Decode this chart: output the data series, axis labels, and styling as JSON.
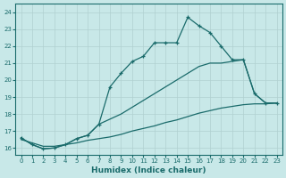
{
  "xlabel": "Humidex (Indice chaleur)",
  "xlim": [
    -0.5,
    23.5
  ],
  "ylim": [
    15.6,
    24.5
  ],
  "yticks": [
    16,
    17,
    18,
    19,
    20,
    21,
    22,
    23,
    24
  ],
  "xticks": [
    0,
    1,
    2,
    3,
    4,
    5,
    6,
    7,
    8,
    9,
    10,
    11,
    12,
    13,
    14,
    15,
    16,
    17,
    18,
    19,
    20,
    21,
    22,
    23
  ],
  "bg_color": "#c8e8e8",
  "line_color": "#1a6b6b",
  "line_a_x": [
    0,
    1,
    2,
    3,
    4,
    5,
    6,
    7,
    8,
    9,
    10,
    11,
    12,
    13,
    14,
    15,
    16,
    17,
    18,
    19,
    20,
    21,
    22,
    23
  ],
  "line_a_y": [
    16.6,
    16.2,
    15.95,
    16.0,
    16.2,
    16.55,
    16.75,
    17.4,
    19.6,
    20.4,
    21.1,
    21.4,
    22.2,
    22.2,
    22.2,
    23.7,
    23.2,
    22.8,
    22.0,
    21.2,
    21.2,
    19.2,
    18.65,
    18.65
  ],
  "line_b_x": [
    0,
    1,
    2,
    3,
    4,
    5,
    6,
    7,
    8,
    9,
    10,
    11,
    12,
    13,
    14,
    15,
    16,
    17,
    18,
    19,
    20,
    21,
    22,
    23
  ],
  "line_b_y": [
    16.6,
    16.2,
    15.95,
    16.0,
    16.2,
    16.55,
    16.75,
    17.4,
    17.7,
    18.0,
    18.4,
    18.8,
    19.2,
    19.6,
    20.0,
    20.4,
    20.8,
    21.0,
    21.0,
    21.1,
    21.2,
    19.2,
    18.65,
    18.65
  ],
  "line_c_x": [
    0,
    1,
    2,
    3,
    4,
    5,
    6,
    7,
    8,
    9,
    10,
    11,
    12,
    13,
    14,
    15,
    16,
    17,
    18,
    19,
    20,
    21,
    22,
    23
  ],
  "line_c_y": [
    16.5,
    16.3,
    16.1,
    16.1,
    16.2,
    16.3,
    16.45,
    16.55,
    16.65,
    16.8,
    17.0,
    17.15,
    17.3,
    17.5,
    17.65,
    17.85,
    18.05,
    18.2,
    18.35,
    18.45,
    18.55,
    18.6,
    18.6,
    18.65
  ]
}
